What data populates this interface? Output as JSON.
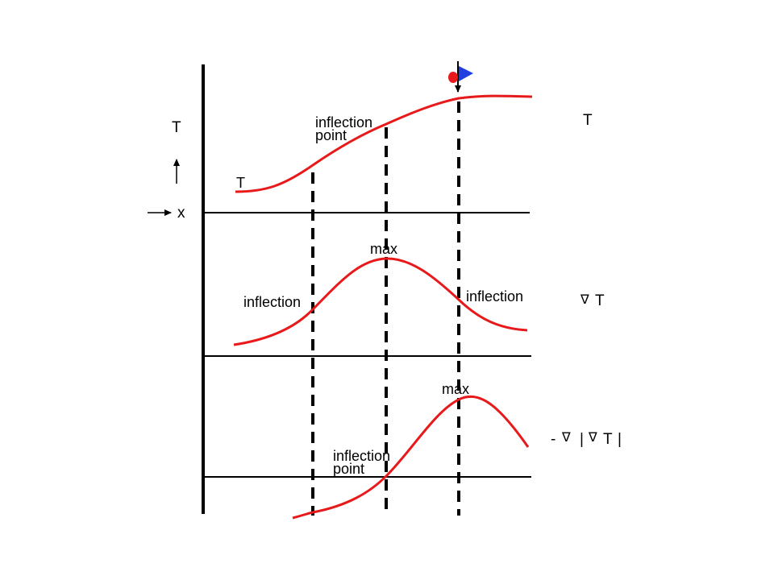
{
  "colors": {
    "curve": "#e8191a",
    "axis": "#000000",
    "marker_dot": "#e8191a",
    "marker_flag": "#1f3fe0"
  },
  "icons": {
    "nabla": "∇",
    "marker": "red-dot-blue-flag-icon"
  },
  "left_axis": {
    "t_label": "T",
    "x_label": "x"
  },
  "panel_temperature": {
    "curve_label": "T",
    "inflection_line1": "inflection",
    "inflection_line2": "point",
    "right_label": "T"
  },
  "panel_gradient": {
    "max_label": "max",
    "inflection_left": "inflection",
    "inflection_right": "inflection",
    "right_label_symbol": "∇",
    "right_label_text": "T"
  },
  "panel_front": {
    "max_label": "max",
    "inflection_line1": "inflection",
    "inflection_line2": "point",
    "right_minus": "-",
    "right_nabla1": "∇",
    "right_bar1": "|",
    "right_nabla2": "∇",
    "right_T": "T",
    "right_bar2": "|"
  }
}
